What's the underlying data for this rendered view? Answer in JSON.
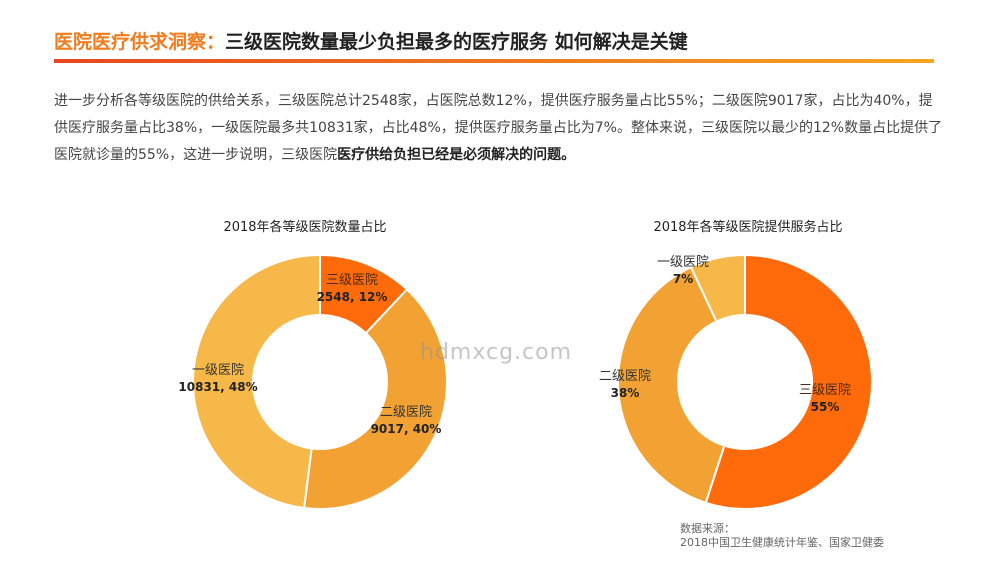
{
  "header": {
    "title_accent": "医院医疗供求洞察：",
    "title_main": "三级医院数量最少负担最多的医疗服务 如何解决是关键"
  },
  "paragraph": {
    "text": "进一步分析各等级医院的供给关系，三级医院总计2548家，占医院总数12%，提供医疗服务量占比55%；二级医院9017家，占比为40%，提供医疗服务量占比38%，一级医院最多共10831家，占比48%，提供医疗服务量占比为7%。整体来说，三级医院以最少的12%数量占比提供了医院就诊量的55%，这进一步说明，三级医院",
    "emphasis": "医疗供给负担已经是必须解决的问题。"
  },
  "colors": {
    "accent": "#F07C1E",
    "level3": "#FF6A0B",
    "level2": "#F1A233",
    "level1": "#F7B84A"
  },
  "watermark": "hdmxcg.com",
  "source": {
    "line1": "数据来源：",
    "line2": "2018中国卫生健康统计年鉴、国家卫健委"
  },
  "chart_data": [
    {
      "type": "pie",
      "donut": true,
      "title": "2018年各等级医院数量占比",
      "slices": [
        {
          "name": "三级医院",
          "label": "2548, 12%",
          "count": 2548,
          "value": 12,
          "color": "#FF6A0B"
        },
        {
          "name": "二级医院",
          "label": "9017, 40%",
          "count": 9017,
          "value": 40,
          "color": "#F1A233"
        },
        {
          "name": "一级医院",
          "label": "10831, 48%",
          "count": 10831,
          "value": 48,
          "color": "#F7B84A"
        }
      ]
    },
    {
      "type": "pie",
      "donut": true,
      "title": "2018年各等级医院提供服务占比",
      "slices": [
        {
          "name": "三级医院",
          "label": "55%",
          "value": 55,
          "color": "#FF6A0B"
        },
        {
          "name": "二级医院",
          "label": "38%",
          "value": 38,
          "color": "#F1A233"
        },
        {
          "name": "一级医院",
          "label": "7%",
          "value": 7,
          "color": "#F7B84A"
        }
      ]
    }
  ]
}
